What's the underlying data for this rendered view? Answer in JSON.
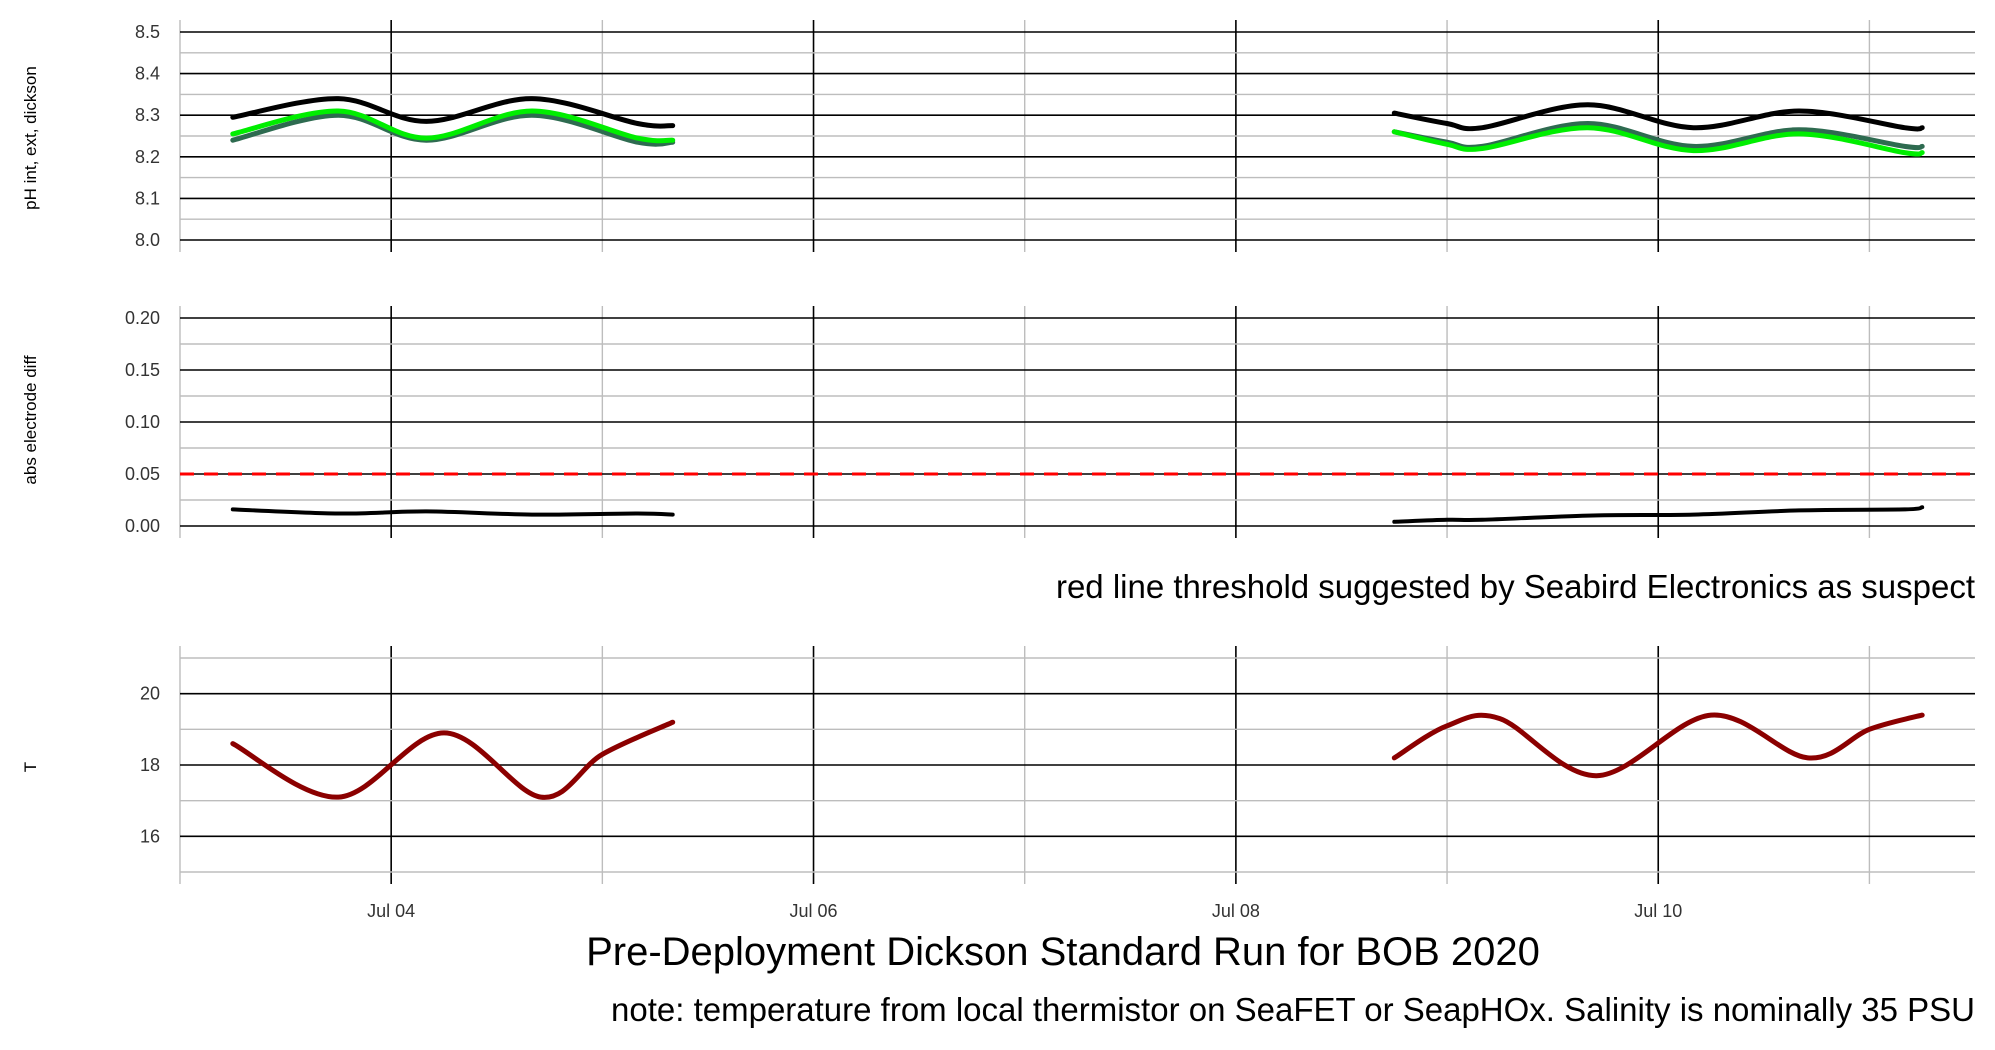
{
  "title": "Pre-Deployment Dickson Standard Run for BOB 2020",
  "caption": "note: temperature from local thermistor on SeaFET or SeapHOx. Salinity is nominally 35 PSU",
  "colors": {
    "ph_dickson": "#000000",
    "ph_ext": "#2e6b50",
    "ph_int": "#00ee00",
    "diff": "#000000",
    "threshold": "#ff0000",
    "temperature": "#8b0000"
  },
  "x_axis": {
    "ticks": [
      "Jul 04",
      "Jul 06",
      "Jul 08",
      "Jul 10"
    ],
    "range": [
      "2020-07-03 00:00",
      "2020-07-11 12:00"
    ]
  },
  "chart_data": [
    {
      "type": "line",
      "ylabel": "pH int, ext, dickson",
      "ylim": [
        8.0,
        8.5
      ],
      "y_ticks": [
        "8.0",
        "8.1",
        "8.2",
        "8.3",
        "8.4",
        "8.5"
      ],
      "grid": true,
      "series": [
        {
          "key": "ph_dickson",
          "x": [
            "2020-07-03 06:00",
            "2020-07-03 18:00",
            "2020-07-04 04:00",
            "2020-07-04 16:00",
            "2020-07-05 04:00",
            "2020-07-05 08:00",
            "2020-07-08 18:00",
            "2020-07-09 00:00",
            "2020-07-09 04:00",
            "2020-07-09 16:00",
            "2020-07-10 04:00",
            "2020-07-10 16:00",
            "2020-07-11 04:00",
            "2020-07-11 06:00"
          ],
          "y": [
            8.295,
            8.34,
            8.285,
            8.34,
            8.28,
            8.275,
            8.305,
            8.28,
            8.27,
            8.325,
            8.27,
            8.31,
            8.27,
            8.27
          ]
        },
        {
          "key": "ph_ext",
          "x": [
            "2020-07-03 06:00",
            "2020-07-03 18:00",
            "2020-07-04 04:00",
            "2020-07-04 16:00",
            "2020-07-05 04:00",
            "2020-07-05 08:00",
            "2020-07-08 18:00",
            "2020-07-09 00:00",
            "2020-07-09 04:00",
            "2020-07-09 16:00",
            "2020-07-10 04:00",
            "2020-07-10 16:00",
            "2020-07-11 04:00",
            "2020-07-11 06:00"
          ],
          "y": [
            8.24,
            8.3,
            8.24,
            8.3,
            8.235,
            8.235,
            8.26,
            8.235,
            8.225,
            8.28,
            8.225,
            8.265,
            8.225,
            8.225
          ]
        },
        {
          "key": "ph_int",
          "x": [
            "2020-07-03 06:00",
            "2020-07-03 18:00",
            "2020-07-04 04:00",
            "2020-07-04 16:00",
            "2020-07-05 04:00",
            "2020-07-05 08:00",
            "2020-07-08 18:00",
            "2020-07-09 00:00",
            "2020-07-09 04:00",
            "2020-07-09 16:00",
            "2020-07-10 04:00",
            "2020-07-10 16:00",
            "2020-07-11 04:00",
            "2020-07-11 06:00"
          ],
          "y": [
            8.255,
            8.31,
            8.245,
            8.31,
            8.245,
            8.24,
            8.26,
            8.23,
            8.22,
            8.27,
            8.215,
            8.255,
            8.21,
            8.21
          ]
        }
      ]
    },
    {
      "type": "line",
      "ylabel": "abs electrode diff",
      "ylim": [
        0.0,
        0.2
      ],
      "y_ticks": [
        "0.00",
        "0.05",
        "0.10",
        "0.15",
        "0.20"
      ],
      "grid": true,
      "threshold": 0.05,
      "series": [
        {
          "key": "diff",
          "x": [
            "2020-07-03 06:00",
            "2020-07-03 18:00",
            "2020-07-04 04:00",
            "2020-07-04 16:00",
            "2020-07-05 04:00",
            "2020-07-05 08:00",
            "2020-07-08 18:00",
            "2020-07-09 00:00",
            "2020-07-09 04:00",
            "2020-07-09 16:00",
            "2020-07-10 04:00",
            "2020-07-10 16:00",
            "2020-07-11 04:00",
            "2020-07-11 06:00"
          ],
          "y": [
            0.016,
            0.012,
            0.014,
            0.011,
            0.012,
            0.011,
            0.004,
            0.006,
            0.006,
            0.01,
            0.011,
            0.015,
            0.016,
            0.018
          ]
        }
      ]
    },
    {
      "type": "line",
      "ylabel": "T",
      "ylim": [
        15.0,
        21.0
      ],
      "y_ticks": [
        "16",
        "18",
        "20"
      ],
      "grid": true,
      "series": [
        {
          "key": "temperature",
          "x": [
            "2020-07-03 06:00",
            "2020-07-03 18:00",
            "2020-07-04 06:00",
            "2020-07-04 17:00",
            "2020-07-05 00:00",
            "2020-07-05 08:00",
            "2020-07-08 18:00",
            "2020-07-09 00:00",
            "2020-07-09 06:00",
            "2020-07-09 17:00",
            "2020-07-10 06:00",
            "2020-07-10 17:00",
            "2020-07-11 00:00",
            "2020-07-11 06:00"
          ],
          "y": [
            18.6,
            17.1,
            18.9,
            17.1,
            18.3,
            19.2,
            18.2,
            19.1,
            19.3,
            17.7,
            19.4,
            18.2,
            19.0,
            19.4
          ]
        }
      ]
    }
  ],
  "annotation": "red line threshold suggested by Seabird Electronics as suspect"
}
